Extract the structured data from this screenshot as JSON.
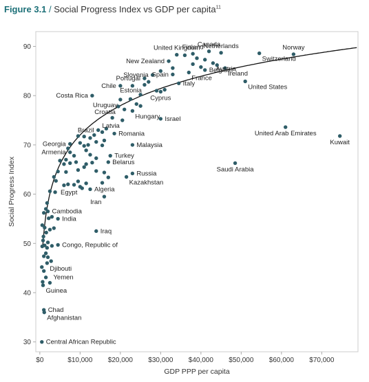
{
  "figure": {
    "number": "Figure 3.1",
    "title": "Social Progress Index vs GDP per capita",
    "note_ref": "11"
  },
  "colors": {
    "point": "#2f5d68",
    "curve": "#111111",
    "axis": "#aaaaaa",
    "grid": "#e2e2e2",
    "title_accent": "#1b6f77"
  },
  "chart_data": {
    "type": "scatter",
    "xlabel": "GDP PPP per capita",
    "ylabel": "Social Progress Index",
    "xlim": [
      -1000,
      79000
    ],
    "ylim": [
      28,
      93
    ],
    "xticks": [
      0,
      10000,
      20000,
      30000,
      40000,
      50000,
      60000,
      70000
    ],
    "xtick_labels": [
      "$0",
      "$10,000",
      "$20,000",
      "$30,000",
      "$40,000",
      "$50,000",
      "$60,000",
      "$70,000"
    ],
    "yticks": [
      30,
      40,
      50,
      60,
      70,
      80,
      90
    ],
    "ytick_labels": [
      "30",
      "40",
      "50",
      "60",
      "70",
      "80",
      "90"
    ],
    "grid": false,
    "trend": "logarithmic fit",
    "labeled_points": [
      {
        "name": "Finland",
        "x": 38000,
        "y": 88.5,
        "pos": "above"
      },
      {
        "name": "Canada",
        "x": 42000,
        "y": 89.0,
        "pos": "above"
      },
      {
        "name": "United Kingdom",
        "x": 34000,
        "y": 88.3,
        "pos": "above"
      },
      {
        "name": "Netherlands",
        "x": 45000,
        "y": 88.7,
        "pos": "above"
      },
      {
        "name": "Norway",
        "x": 63000,
        "y": 88.4,
        "pos": "above"
      },
      {
        "name": "New Zealand",
        "x": 32000,
        "y": 87.0,
        "pos": "left"
      },
      {
        "name": "Switzerland",
        "x": 54500,
        "y": 88.6,
        "pos": "belowright"
      },
      {
        "name": "Slovenia",
        "x": 28000,
        "y": 84.2,
        "pos": "left"
      },
      {
        "name": "Austria",
        "x": 43000,
        "y": 86.6,
        "pos": "belowright"
      },
      {
        "name": "Ireland",
        "x": 46000,
        "y": 85.6,
        "pos": "belowright"
      },
      {
        "name": "Spain",
        "x": 33000,
        "y": 84.3,
        "pos": "left"
      },
      {
        "name": "France",
        "x": 37000,
        "y": 84.7,
        "pos": "belowright"
      },
      {
        "name": "Belgium",
        "x": 41000,
        "y": 85.2,
        "pos": "right"
      },
      {
        "name": "Portugal",
        "x": 26000,
        "y": 83.5,
        "pos": "left"
      },
      {
        "name": "Italy",
        "x": 34500,
        "y": 82.5,
        "pos": "right"
      },
      {
        "name": "United States",
        "x": 51000,
        "y": 82.9,
        "pos": "belowright"
      },
      {
        "name": "Chile",
        "x": 20000,
        "y": 82.0,
        "pos": "left"
      },
      {
        "name": "Estonia",
        "x": 26000,
        "y": 82.2,
        "pos": "belowleft"
      },
      {
        "name": "Costa Rica",
        "x": 13000,
        "y": 80.0,
        "pos": "left"
      },
      {
        "name": "Uruguay",
        "x": 20000,
        "y": 79.2,
        "pos": "belowleft"
      },
      {
        "name": "Cyprus",
        "x": 30000,
        "y": 80.8,
        "pos": "below"
      },
      {
        "name": "Croatia",
        "x": 19500,
        "y": 77.8,
        "pos": "belowleft"
      },
      {
        "name": "Hungary",
        "x": 23000,
        "y": 76.9,
        "pos": "belowright"
      },
      {
        "name": "Israel",
        "x": 30000,
        "y": 75.3,
        "pos": "right"
      },
      {
        "name": "Latvia",
        "x": 20500,
        "y": 75.0,
        "pos": "belowleft"
      },
      {
        "name": "Brazil",
        "x": 14500,
        "y": 73.0,
        "pos": "left"
      },
      {
        "name": "Romania",
        "x": 18500,
        "y": 72.3,
        "pos": "right"
      },
      {
        "name": "United Arab Emirates",
        "x": 61000,
        "y": 73.6,
        "pos": "below"
      },
      {
        "name": "Kuwait",
        "x": 74500,
        "y": 71.8,
        "pos": "below"
      },
      {
        "name": "Georgia",
        "x": 7500,
        "y": 70.2,
        "pos": "left"
      },
      {
        "name": "Malaysia",
        "x": 23000,
        "y": 70.0,
        "pos": "right"
      },
      {
        "name": "Armenia",
        "x": 7500,
        "y": 68.5,
        "pos": "left"
      },
      {
        "name": "Turkey",
        "x": 17500,
        "y": 67.8,
        "pos": "right"
      },
      {
        "name": "Belarus",
        "x": 17000,
        "y": 66.5,
        "pos": "right"
      },
      {
        "name": "Saudi Arabia",
        "x": 48500,
        "y": 66.3,
        "pos": "below"
      },
      {
        "name": "Russia",
        "x": 23000,
        "y": 64.2,
        "pos": "right"
      },
      {
        "name": "Kazakhstan",
        "x": 21500,
        "y": 63.5,
        "pos": "belowright"
      },
      {
        "name": "Algeria",
        "x": 12500,
        "y": 61.0,
        "pos": "right"
      },
      {
        "name": "Egypt",
        "x": 10000,
        "y": 61.5,
        "pos": "belowleft"
      },
      {
        "name": "Iran",
        "x": 16000,
        "y": 59.5,
        "pos": "belowleft"
      },
      {
        "name": "Cambodia",
        "x": 2000,
        "y": 56.5,
        "pos": "right"
      },
      {
        "name": "India",
        "x": 4500,
        "y": 55.0,
        "pos": "right"
      },
      {
        "name": "Iraq",
        "x": 14000,
        "y": 52.5,
        "pos": "right"
      },
      {
        "name": "Congo, Republic of",
        "x": 4500,
        "y": 49.7,
        "pos": "right"
      },
      {
        "name": "Djibouti",
        "x": 1800,
        "y": 46.0,
        "pos": "belowright"
      },
      {
        "name": "Yemen",
        "x": 2500,
        "y": 42.0,
        "pos": "aboveright"
      },
      {
        "name": "Guinea",
        "x": 800,
        "y": 41.5,
        "pos": "belowright"
      },
      {
        "name": "Chad",
        "x": 1000,
        "y": 36.5,
        "pos": "right"
      },
      {
        "name": "Afghanistan",
        "x": 1100,
        "y": 36.0,
        "pos": "belowright"
      },
      {
        "name": "Central African Republic",
        "x": 500,
        "y": 30.0,
        "pos": "right"
      }
    ],
    "other_points": [
      [
        36000,
        88.2
      ],
      [
        39000,
        87.6
      ],
      [
        41000,
        87.3
      ],
      [
        40000,
        85.8
      ],
      [
        38000,
        86.4
      ],
      [
        44000,
        86.2
      ],
      [
        30000,
        85.0
      ],
      [
        33000,
        85.6
      ],
      [
        27000,
        82.8
      ],
      [
        31000,
        81.2
      ],
      [
        29000,
        81.0
      ],
      [
        23000,
        82.0
      ],
      [
        25000,
        80.2
      ],
      [
        22500,
        79.3
      ],
      [
        24000,
        78.3
      ],
      [
        25000,
        77.9
      ],
      [
        21000,
        77.2
      ],
      [
        18000,
        75.5
      ],
      [
        16500,
        73.3
      ],
      [
        15500,
        72.6
      ],
      [
        13500,
        72.0
      ],
      [
        12500,
        71.4
      ],
      [
        11000,
        71.7
      ],
      [
        9500,
        71.8
      ],
      [
        12000,
        70.0
      ],
      [
        10000,
        70.4
      ],
      [
        11000,
        69.8
      ],
      [
        7000,
        69.3
      ],
      [
        16000,
        70.9
      ],
      [
        14000,
        70.6
      ],
      [
        15500,
        69.9
      ],
      [
        11500,
        68.9
      ],
      [
        12500,
        68.0
      ],
      [
        14000,
        67.3
      ],
      [
        13000,
        66.4
      ],
      [
        11500,
        66.1
      ],
      [
        8500,
        67.8
      ],
      [
        9000,
        66.5
      ],
      [
        6500,
        67.0
      ],
      [
        5000,
        66.8
      ],
      [
        6000,
        66.1
      ],
      [
        7500,
        66.3
      ],
      [
        9500,
        64.9
      ],
      [
        11000,
        65.5
      ],
      [
        14000,
        64.7
      ],
      [
        16000,
        64.4
      ],
      [
        17000,
        63.4
      ],
      [
        4500,
        64.6
      ],
      [
        6500,
        64.5
      ],
      [
        3500,
        63.5
      ],
      [
        4000,
        62.7
      ],
      [
        15500,
        62.3
      ],
      [
        9500,
        62.6
      ],
      [
        11500,
        62.2
      ],
      [
        8500,
        61.9
      ],
      [
        10500,
        61.2
      ],
      [
        6000,
        61.8
      ],
      [
        7000,
        62.0
      ],
      [
        2500,
        60.6
      ],
      [
        3800,
        60.4
      ],
      [
        1800,
        58.2
      ],
      [
        1500,
        57.0
      ],
      [
        1000,
        56.2
      ],
      [
        3000,
        55.4
      ],
      [
        2200,
        55.1
      ],
      [
        600,
        53.7
      ],
      [
        1200,
        53.2
      ],
      [
        2500,
        52.8
      ],
      [
        3500,
        53.1
      ],
      [
        1600,
        52.2
      ],
      [
        900,
        51.4
      ],
      [
        800,
        50.6
      ],
      [
        2000,
        50.2
      ],
      [
        1200,
        49.6
      ],
      [
        600,
        49.4
      ],
      [
        3000,
        49.5
      ],
      [
        1800,
        49.1
      ],
      [
        1500,
        48.0
      ],
      [
        1000,
        47.4
      ],
      [
        2000,
        47.2
      ],
      [
        2800,
        46.4
      ],
      [
        500,
        45.2
      ],
      [
        1000,
        44.4
      ],
      [
        1500,
        43.1
      ],
      [
        700,
        42.2
      ]
    ]
  }
}
